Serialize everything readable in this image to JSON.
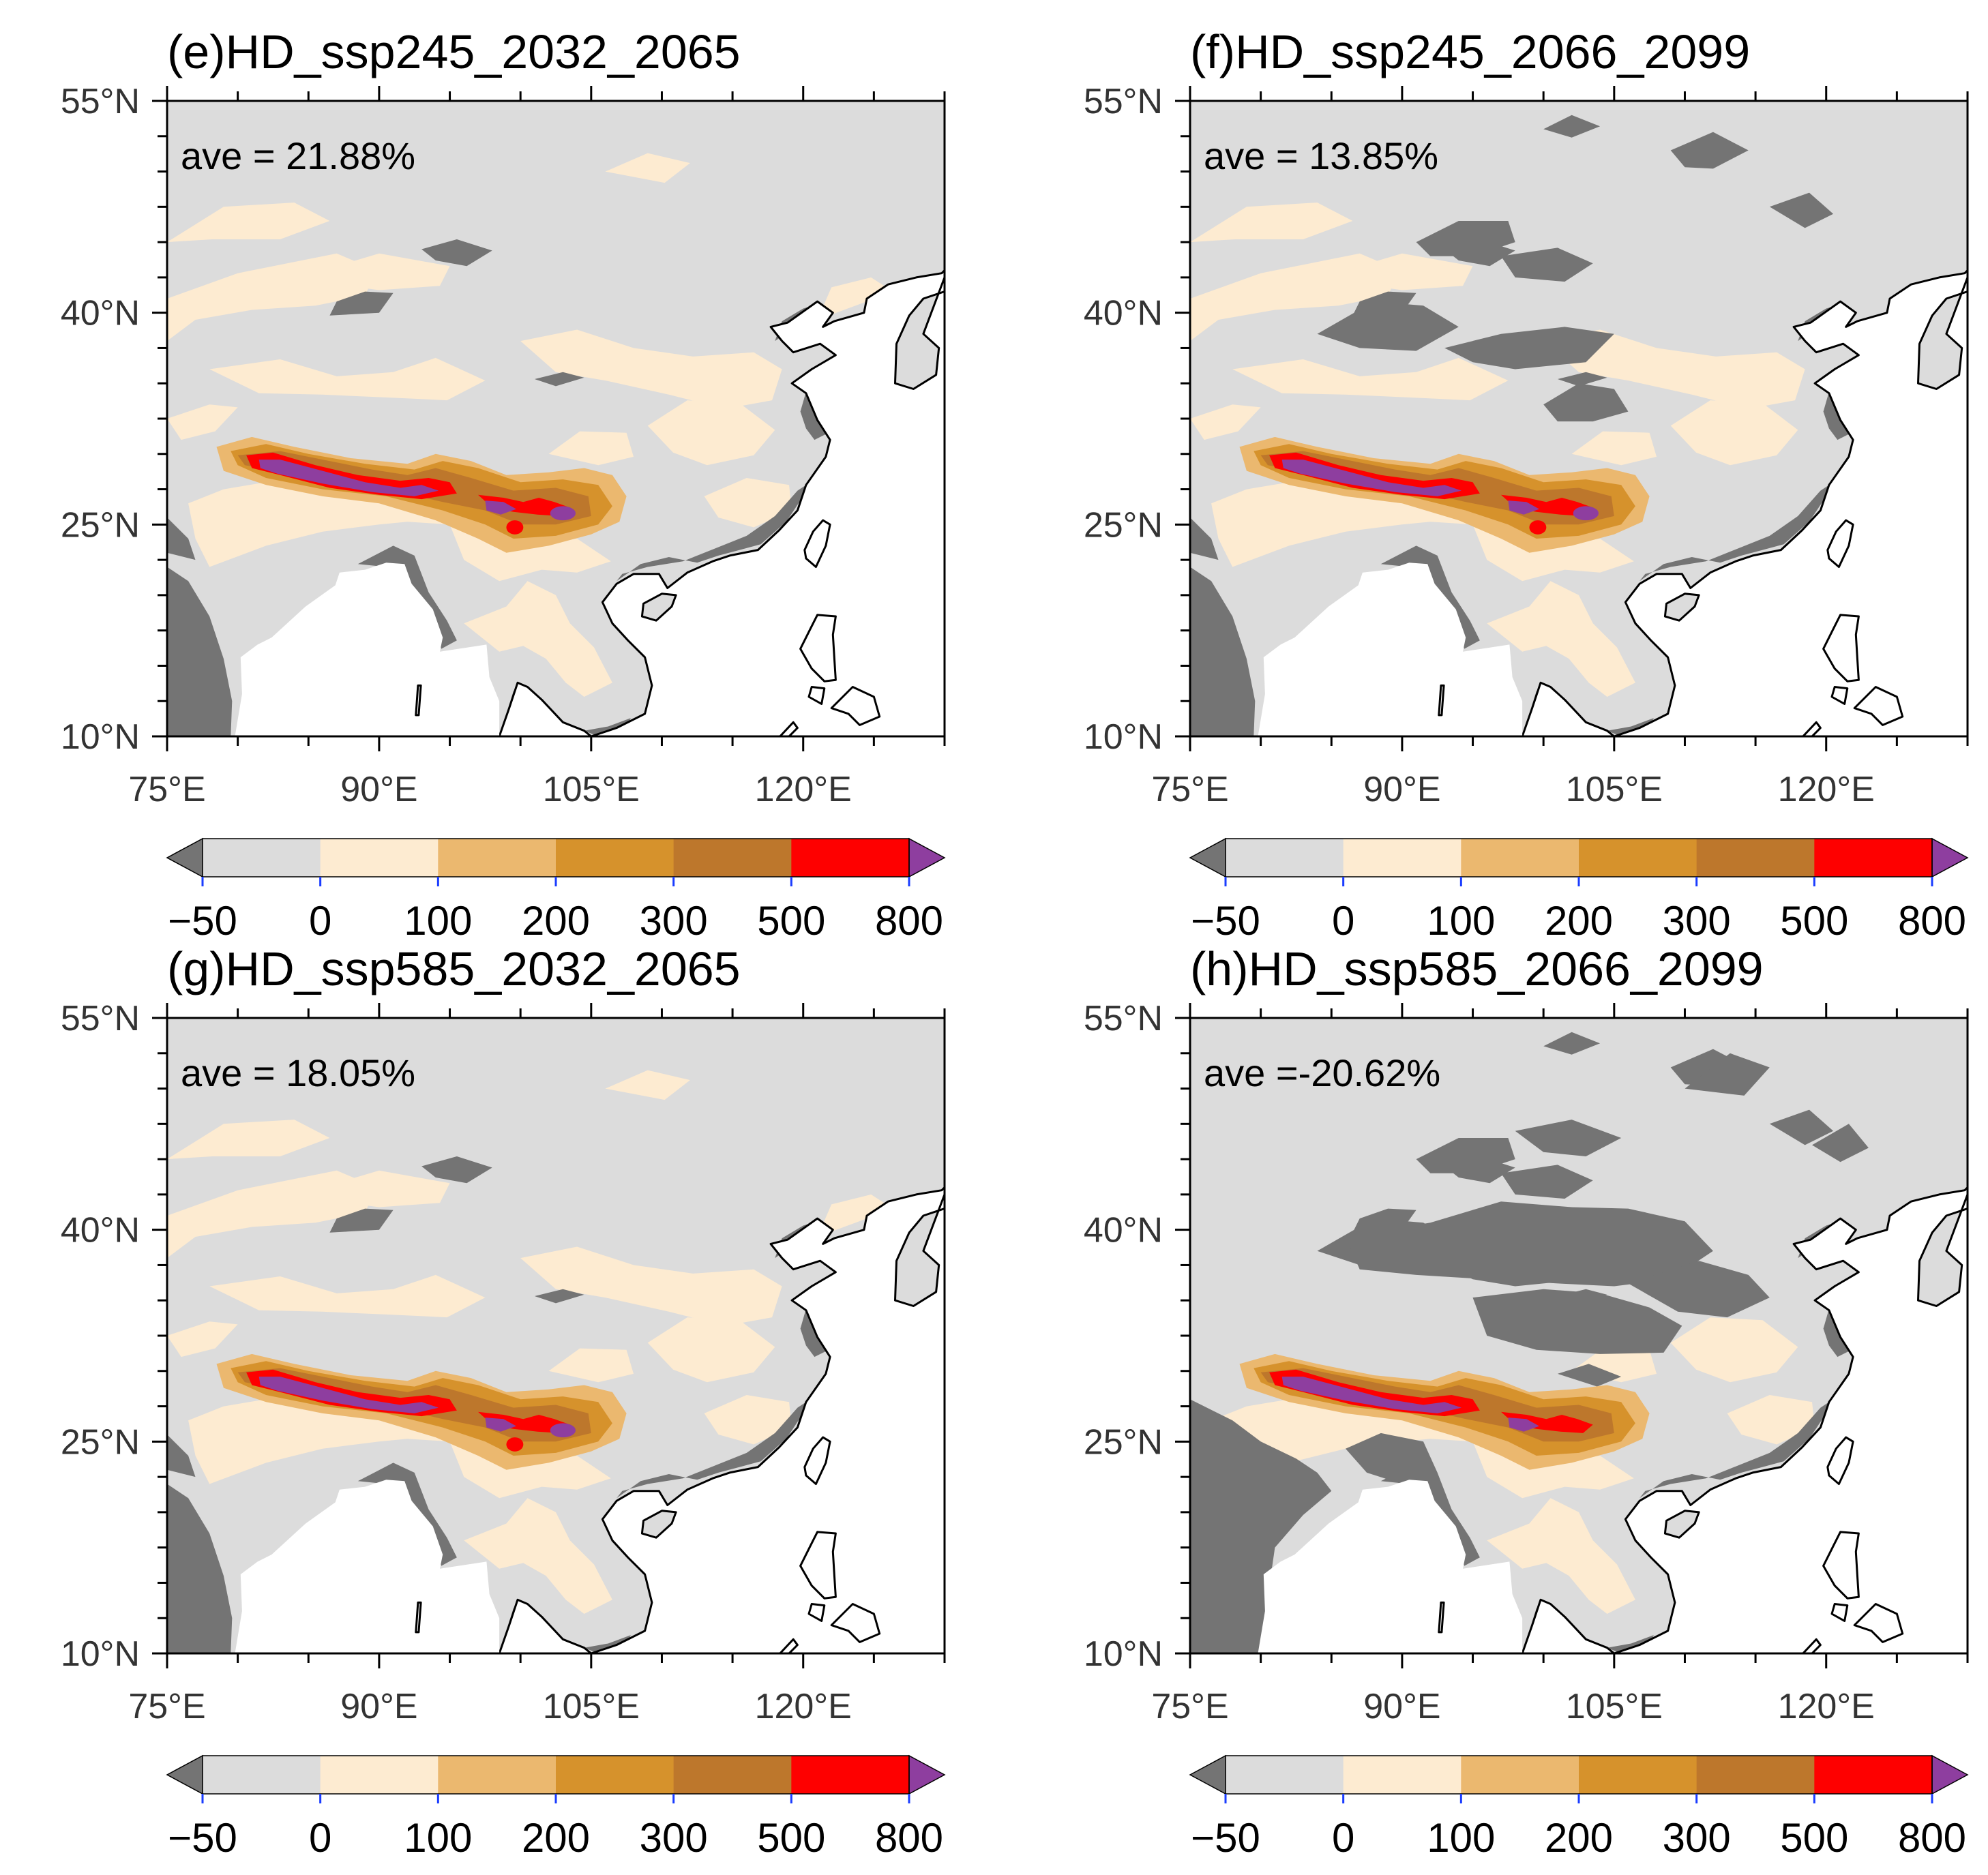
{
  "figure": {
    "name": "Four-panel projected change maps"
  },
  "colorbar": {
    "labels": [
      "−50",
      "0",
      "100",
      "200",
      "300",
      "500",
      "800"
    ],
    "colors": {
      "below": "#747474",
      "c1": "#dcdcdc",
      "c2": "#fdebd1",
      "c3": "#ebb86f",
      "c4": "#d6922c",
      "c5": "#bd772c",
      "c6": "#fe0000",
      "above": "#8e3e9f"
    }
  },
  "map": {
    "xticks": [
      "75°E",
      "90°E",
      "105°E",
      "120°E"
    ],
    "yticks": [
      "55°N",
      "40°N",
      "25°N",
      "10°N"
    ],
    "extent": {
      "lon_min": 75,
      "lon_max": 130,
      "lat_min": 10,
      "lat_max": 55
    },
    "land_color": "#dcdcdc",
    "ocean_color": "#ffffff"
  },
  "panels": [
    {
      "id": "e",
      "title": "(e)HD_ssp245_2032_2065",
      "ave": "ave = 21.88%",
      "ave_value": 21.88,
      "dark_extent": "low",
      "core_scale": 1.0
    },
    {
      "id": "f",
      "title": "(f)HD_ssp245_2066_2099",
      "ave": "ave = 13.85%",
      "ave_value": 13.85,
      "dark_extent": "medium",
      "core_scale": 0.8
    },
    {
      "id": "g",
      "title": "(g)HD_ssp585_2032_2065",
      "ave": "ave = 18.05%",
      "ave_value": 18.05,
      "dark_extent": "low",
      "core_scale": 1.0
    },
    {
      "id": "h",
      "title": "(h)HD_ssp585_2066_2099",
      "ave": "ave =-20.62%",
      "ave_value": -20.62,
      "dark_extent": "high",
      "core_scale": 0.6
    }
  ]
}
